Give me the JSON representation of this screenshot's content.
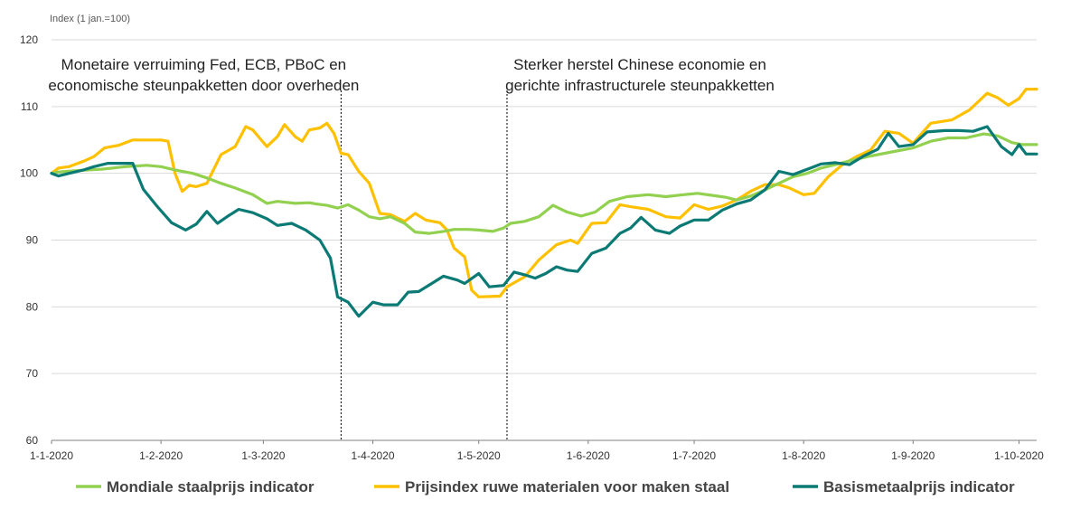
{
  "chart_data": {
    "type": "line",
    "ylabel": "Index (1 jan.=100)",
    "ylim": [
      60,
      120
    ],
    "yticks": [
      60,
      70,
      80,
      90,
      100,
      110,
      120
    ],
    "x_range": [
      "2020-01-01",
      "2020-10-06"
    ],
    "xticks": [
      {
        "date": "2020-01-01",
        "label": "1-1-2020"
      },
      {
        "date": "2020-02-01",
        "label": "1-2-2020"
      },
      {
        "date": "2020-03-01",
        "label": "1-3-2020"
      },
      {
        "date": "2020-04-01",
        "label": "1-4-2020"
      },
      {
        "date": "2020-05-01",
        "label": "1-5-2020"
      },
      {
        "date": "2020-06-01",
        "label": "1-6-2020"
      },
      {
        "date": "2020-07-01",
        "label": "1-7-2020"
      },
      {
        "date": "2020-08-01",
        "label": "1-8-2020"
      },
      {
        "date": "2020-09-01",
        "label": "1-9-2020"
      },
      {
        "date": "2020-10-01",
        "label": "1-10-2020"
      }
    ],
    "grid": "horizontal",
    "legend_position": "bottom",
    "annotations": [
      {
        "lines": [
          "Monetaire verruiming Fed, ECB,  PBoC  en",
          "economische steunpakketten door overheden"
        ],
        "date": "2020-03-23"
      },
      {
        "lines": [
          "Sterker herstel Chinese economie en",
          "gerichte infrastructurele steunpakketten"
        ],
        "date": "2020-05-09"
      }
    ],
    "series": [
      {
        "name": "Mondiale staalprijs indicator",
        "color": "#92D050",
        "points": [
          [
            "2020-01-01",
            100
          ],
          [
            "2020-01-03",
            100.2
          ],
          [
            "2020-01-08",
            100.4
          ],
          [
            "2020-01-15",
            100.6
          ],
          [
            "2020-01-22",
            101
          ],
          [
            "2020-01-28",
            101.2
          ],
          [
            "2020-02-01",
            101
          ],
          [
            "2020-02-05",
            100.5
          ],
          [
            "2020-02-10",
            100
          ],
          [
            "2020-02-14",
            99.3
          ],
          [
            "2020-02-18",
            98.5
          ],
          [
            "2020-02-22",
            97.8
          ],
          [
            "2020-02-27",
            96.8
          ],
          [
            "2020-03-02",
            95.5
          ],
          [
            "2020-03-05",
            95.8
          ],
          [
            "2020-03-10",
            95.5
          ],
          [
            "2020-03-14",
            95.6
          ],
          [
            "2020-03-16",
            95.4
          ],
          [
            "2020-03-19",
            95.2
          ],
          [
            "2020-03-22",
            94.8
          ],
          [
            "2020-03-25",
            95.3
          ],
          [
            "2020-03-28",
            94.5
          ],
          [
            "2020-03-31",
            93.5
          ],
          [
            "2020-04-03",
            93.2
          ],
          [
            "2020-04-06",
            93.5
          ],
          [
            "2020-04-10",
            92.5
          ],
          [
            "2020-04-13",
            91.2
          ],
          [
            "2020-04-17",
            91
          ],
          [
            "2020-04-21",
            91.3
          ],
          [
            "2020-04-24",
            91.6
          ],
          [
            "2020-04-28",
            91.6
          ],
          [
            "2020-05-01",
            91.5
          ],
          [
            "2020-05-05",
            91.3
          ],
          [
            "2020-05-08",
            91.8
          ],
          [
            "2020-05-10",
            92.5
          ],
          [
            "2020-05-14",
            92.8
          ],
          [
            "2020-05-18",
            93.5
          ],
          [
            "2020-05-22",
            95.2
          ],
          [
            "2020-05-26",
            94.2
          ],
          [
            "2020-05-30",
            93.6
          ],
          [
            "2020-06-03",
            94.2
          ],
          [
            "2020-06-07",
            95.8
          ],
          [
            "2020-06-12",
            96.5
          ],
          [
            "2020-06-18",
            96.8
          ],
          [
            "2020-06-23",
            96.5
          ],
          [
            "2020-06-28",
            96.8
          ],
          [
            "2020-07-02",
            97
          ],
          [
            "2020-07-06",
            96.7
          ],
          [
            "2020-07-10",
            96.4
          ],
          [
            "2020-07-13",
            96
          ],
          [
            "2020-07-17",
            96.6
          ],
          [
            "2020-07-21",
            97.5
          ],
          [
            "2020-07-25",
            98.5
          ],
          [
            "2020-07-29",
            99.5
          ],
          [
            "2020-08-02",
            100
          ],
          [
            "2020-08-06",
            100.8
          ],
          [
            "2020-08-10",
            101.3
          ],
          [
            "2020-08-15",
            102
          ],
          [
            "2020-08-20",
            102.6
          ],
          [
            "2020-08-26",
            103.2
          ],
          [
            "2020-09-01",
            103.8
          ],
          [
            "2020-09-06",
            104.8
          ],
          [
            "2020-09-11",
            105.3
          ],
          [
            "2020-09-16",
            105.3
          ],
          [
            "2020-09-21",
            105.9
          ],
          [
            "2020-09-25",
            105.6
          ],
          [
            "2020-09-29",
            104.6
          ],
          [
            "2020-10-02",
            104.3
          ],
          [
            "2020-10-06",
            104.3
          ]
        ]
      },
      {
        "name": "Prijsindex ruwe materialen voor maken staal",
        "color": "#FFC000",
        "points": [
          [
            "2020-01-01",
            100
          ],
          [
            "2020-01-03",
            100.8
          ],
          [
            "2020-01-06",
            101
          ],
          [
            "2020-01-10",
            101.8
          ],
          [
            "2020-01-13",
            102.5
          ],
          [
            "2020-01-16",
            103.8
          ],
          [
            "2020-01-20",
            104.2
          ],
          [
            "2020-01-24",
            105
          ],
          [
            "2020-01-28",
            105
          ],
          [
            "2020-02-01",
            105
          ],
          [
            "2020-02-03",
            104.8
          ],
          [
            "2020-02-05",
            100
          ],
          [
            "2020-02-07",
            97.3
          ],
          [
            "2020-02-09",
            98.2
          ],
          [
            "2020-02-11",
            98
          ],
          [
            "2020-02-14",
            98.5
          ],
          [
            "2020-02-18",
            102.8
          ],
          [
            "2020-02-22",
            104
          ],
          [
            "2020-02-25",
            107
          ],
          [
            "2020-02-27",
            106.5
          ],
          [
            "2020-03-02",
            104
          ],
          [
            "2020-03-05",
            105.5
          ],
          [
            "2020-03-07",
            107.3
          ],
          [
            "2020-03-10",
            105.5
          ],
          [
            "2020-03-12",
            104.8
          ],
          [
            "2020-03-14",
            106.5
          ],
          [
            "2020-03-17",
            106.8
          ],
          [
            "2020-03-19",
            107.5
          ],
          [
            "2020-03-21",
            106
          ],
          [
            "2020-03-23",
            103
          ],
          [
            "2020-03-25",
            102.8
          ],
          [
            "2020-03-28",
            100.3
          ],
          [
            "2020-03-31",
            98.5
          ],
          [
            "2020-04-03",
            94
          ],
          [
            "2020-04-06",
            93.8
          ],
          [
            "2020-04-10",
            92.8
          ],
          [
            "2020-04-13",
            94
          ],
          [
            "2020-04-16",
            93
          ],
          [
            "2020-04-20",
            92.6
          ],
          [
            "2020-04-22",
            91.5
          ],
          [
            "2020-04-24",
            88.8
          ],
          [
            "2020-04-27",
            87.5
          ],
          [
            "2020-04-29",
            82.5
          ],
          [
            "2020-05-01",
            81.5
          ],
          [
            "2020-05-07",
            81.6
          ],
          [
            "2020-05-09",
            83
          ],
          [
            "2020-05-14",
            84.5
          ],
          [
            "2020-05-18",
            87
          ],
          [
            "2020-05-23",
            89.3
          ],
          [
            "2020-05-27",
            90
          ],
          [
            "2020-05-29",
            89.5
          ],
          [
            "2020-06-02",
            92.5
          ],
          [
            "2020-06-06",
            92.6
          ],
          [
            "2020-06-10",
            95.3
          ],
          [
            "2020-06-13",
            95
          ],
          [
            "2020-06-18",
            94.6
          ],
          [
            "2020-06-23",
            93.5
          ],
          [
            "2020-06-27",
            93.3
          ],
          [
            "2020-07-01",
            95.3
          ],
          [
            "2020-07-05",
            94.6
          ],
          [
            "2020-07-09",
            95.1
          ],
          [
            "2020-07-13",
            96
          ],
          [
            "2020-07-17",
            97.3
          ],
          [
            "2020-07-21",
            98.3
          ],
          [
            "2020-07-25",
            98.3
          ],
          [
            "2020-07-28",
            97.8
          ],
          [
            "2020-08-01",
            96.8
          ],
          [
            "2020-08-04",
            97
          ],
          [
            "2020-08-08",
            99.5
          ],
          [
            "2020-08-12",
            101.3
          ],
          [
            "2020-08-16",
            102.5
          ],
          [
            "2020-08-20",
            103.5
          ],
          [
            "2020-08-24",
            106.3
          ],
          [
            "2020-08-28",
            106
          ],
          [
            "2020-09-01",
            104.5
          ],
          [
            "2020-09-06",
            107.5
          ],
          [
            "2020-09-12",
            108
          ],
          [
            "2020-09-17",
            109.5
          ],
          [
            "2020-09-22",
            112
          ],
          [
            "2020-09-25",
            111.3
          ],
          [
            "2020-09-28",
            110.2
          ],
          [
            "2020-10-01",
            111.2
          ],
          [
            "2020-10-03",
            112.6
          ],
          [
            "2020-10-06",
            112.6
          ]
        ]
      },
      {
        "name": "Basismetaalprijs indicator",
        "color": "#0B7A75",
        "points": [
          [
            "2020-01-01",
            100
          ],
          [
            "2020-01-03",
            99.6
          ],
          [
            "2020-01-06",
            100
          ],
          [
            "2020-01-10",
            100.5
          ],
          [
            "2020-01-13",
            101
          ],
          [
            "2020-01-17",
            101.5
          ],
          [
            "2020-01-21",
            101.5
          ],
          [
            "2020-01-24",
            101.5
          ],
          [
            "2020-01-27",
            97.6
          ],
          [
            "2020-01-31",
            95
          ],
          [
            "2020-02-04",
            92.6
          ],
          [
            "2020-02-08",
            91.5
          ],
          [
            "2020-02-11",
            92.4
          ],
          [
            "2020-02-14",
            94.3
          ],
          [
            "2020-02-17",
            92.5
          ],
          [
            "2020-02-20",
            93.6
          ],
          [
            "2020-02-23",
            94.6
          ],
          [
            "2020-02-27",
            94.1
          ],
          [
            "2020-03-02",
            93.2
          ],
          [
            "2020-03-05",
            92.2
          ],
          [
            "2020-03-09",
            92.5
          ],
          [
            "2020-03-13",
            91.5
          ],
          [
            "2020-03-17",
            90
          ],
          [
            "2020-03-20",
            87.3
          ],
          [
            "2020-03-22",
            81.5
          ],
          [
            "2020-03-25",
            80.7
          ],
          [
            "2020-03-28",
            78.6
          ],
          [
            "2020-04-01",
            80.7
          ],
          [
            "2020-04-04",
            80.3
          ],
          [
            "2020-04-08",
            80.3
          ],
          [
            "2020-04-11",
            82.2
          ],
          [
            "2020-04-14",
            82.3
          ],
          [
            "2020-04-18",
            83.6
          ],
          [
            "2020-04-21",
            84.6
          ],
          [
            "2020-04-25",
            84
          ],
          [
            "2020-04-27",
            83.5
          ],
          [
            "2020-05-01",
            85
          ],
          [
            "2020-05-04",
            83
          ],
          [
            "2020-05-08",
            83.2
          ],
          [
            "2020-05-11",
            85.2
          ],
          [
            "2020-05-14",
            84.8
          ],
          [
            "2020-05-17",
            84.3
          ],
          [
            "2020-05-20",
            85
          ],
          [
            "2020-05-23",
            86
          ],
          [
            "2020-05-26",
            85.5
          ],
          [
            "2020-05-29",
            85.3
          ],
          [
            "2020-06-02",
            88
          ],
          [
            "2020-06-06",
            88.8
          ],
          [
            "2020-06-10",
            91
          ],
          [
            "2020-06-13",
            91.8
          ],
          [
            "2020-06-16",
            93.4
          ],
          [
            "2020-06-20",
            91.5
          ],
          [
            "2020-06-24",
            91
          ],
          [
            "2020-06-27",
            92.1
          ],
          [
            "2020-07-01",
            93
          ],
          [
            "2020-07-05",
            93
          ],
          [
            "2020-07-09",
            94.5
          ],
          [
            "2020-07-13",
            95.4
          ],
          [
            "2020-07-17",
            96
          ],
          [
            "2020-07-21",
            97.5
          ],
          [
            "2020-07-25",
            100.3
          ],
          [
            "2020-07-29",
            99.8
          ],
          [
            "2020-08-02",
            100.6
          ],
          [
            "2020-08-06",
            101.4
          ],
          [
            "2020-08-10",
            101.6
          ],
          [
            "2020-08-14",
            101.3
          ],
          [
            "2020-08-18",
            102.6
          ],
          [
            "2020-08-22",
            103.6
          ],
          [
            "2020-08-25",
            106
          ],
          [
            "2020-08-28",
            104
          ],
          [
            "2020-09-01",
            104.3
          ],
          [
            "2020-09-05",
            106.2
          ],
          [
            "2020-09-10",
            106.4
          ],
          [
            "2020-09-14",
            106.4
          ],
          [
            "2020-09-18",
            106.3
          ],
          [
            "2020-09-22",
            107
          ],
          [
            "2020-09-26",
            104
          ],
          [
            "2020-09-29",
            102.8
          ],
          [
            "2020-10-01",
            104.3
          ],
          [
            "2020-10-03",
            102.9
          ],
          [
            "2020-10-06",
            102.9
          ]
        ]
      }
    ]
  }
}
